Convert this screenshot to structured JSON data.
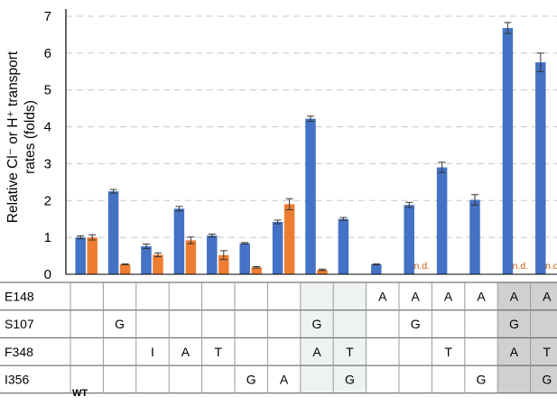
{
  "chart_data": {
    "type": "bar",
    "ylabel_line1": "Relative Cl⁻ or H⁺ transport",
    "ylabel_line2": "rates (folds)",
    "ylim": [
      0,
      7
    ],
    "yticks": [
      "0",
      "1",
      "2",
      "3",
      "4",
      "5",
      "6",
      "7"
    ],
    "grid": true,
    "colors": {
      "cl": "#4472c4",
      "h": "#ed7d31",
      "nd_text": "#c55a11",
      "shade_light": "#eef3ef",
      "shade_dark": "#d0d0d0"
    },
    "series": [
      {
        "values": [
          1.0,
          2.25,
          0.76,
          1.78,
          1.05,
          0.84,
          1.42,
          4.22,
          1.5,
          0.27,
          1.88,
          2.9,
          2.02,
          6.68,
          5.75
        ],
        "errors": [
          0.04,
          0.05,
          0.06,
          0.06,
          0.04,
          0.02,
          0.05,
          0.07,
          0.04,
          0.01,
          0.07,
          0.14,
          0.14,
          0.15,
          0.25
        ]
      },
      {
        "values": [
          1.0,
          0.27,
          0.53,
          0.92,
          0.52,
          0.19,
          1.9,
          0.12,
          null,
          null,
          null,
          null,
          null,
          null,
          null
        ],
        "errors": [
          0.07,
          0.01,
          0.05,
          0.09,
          0.12,
          0.02,
          0.15,
          0.02,
          null,
          null,
          null,
          null,
          null,
          null,
          null
        ]
      }
    ],
    "nd_label": "n.d.",
    "nd_indices": [
      10,
      13,
      14
    ],
    "table": {
      "row_labels": [
        "E148",
        "S107",
        "F348",
        "I356"
      ],
      "rows": [
        [
          "",
          "",
          "",
          "",
          "",
          "",
          "",
          "",
          "",
          "A",
          "A",
          "A",
          "A",
          "A",
          "A"
        ],
        [
          "",
          "G",
          "",
          "",
          "",
          "",
          "",
          "G",
          "",
          "",
          "G",
          "",
          "",
          "G",
          ""
        ],
        [
          "",
          "",
          "I",
          "A",
          "T",
          "",
          "",
          "A",
          "T",
          "",
          "",
          "T",
          "",
          "A",
          "T"
        ],
        [
          "",
          "",
          "",
          "",
          "",
          "G",
          "A",
          "",
          "G",
          "",
          "",
          "",
          "G",
          "",
          "G"
        ]
      ],
      "shade": [
        "",
        "",
        "",
        "",
        "",
        "",
        "",
        "light",
        "light",
        "",
        "",
        "",
        "",
        "dark",
        "dark"
      ]
    },
    "footnote": "WT"
  }
}
